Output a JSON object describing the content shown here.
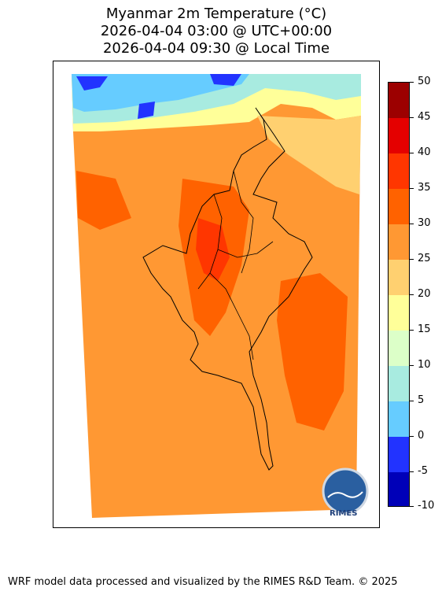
{
  "title": {
    "line1": "Myanmar 2m Temperature (°C)",
    "line2": "2026-04-04 03:00 @ UTC+00:00",
    "line3": "2026-04-04 09:30 @ Local Time"
  },
  "colorbar": {
    "ticks": [
      "50",
      "45",
      "40",
      "35",
      "30",
      "25",
      "20",
      "15",
      "10",
      "5",
      "0",
      "-5",
      "-10"
    ],
    "colors": [
      "#9c0000",
      "#e40000",
      "#ff3600",
      "#ff6200",
      "#ff9833",
      "#ffd070",
      "#ffff99",
      "#dcffc8",
      "#a8ebe0",
      "#66ccff",
      "#2233ff",
      "#0000b8"
    ]
  },
  "logo": {
    "text": "RIMES"
  },
  "footer": {
    "credit": "WRF model data processed and visualized by the RIMES R&D Team. © 2025"
  }
}
